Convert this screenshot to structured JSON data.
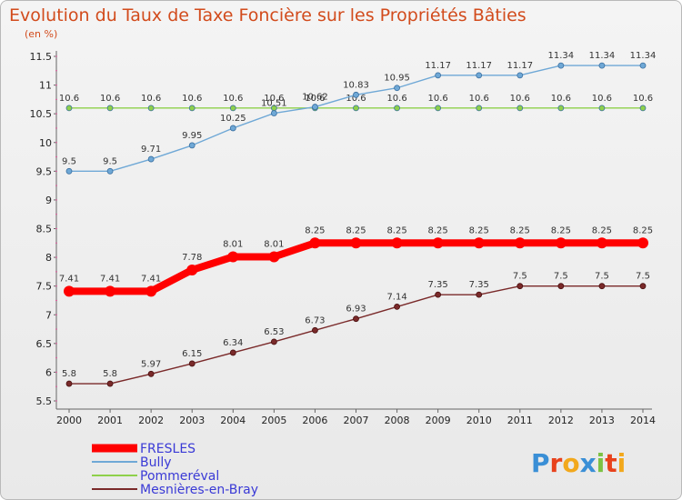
{
  "chart_data": {
    "type": "line",
    "title": "Evolution du Taux de Taxe Foncière sur les Propriétés Bâties",
    "subtitle": "(en %)",
    "x": [
      "2000",
      "2001",
      "2002",
      "2003",
      "2004",
      "2005",
      "2006",
      "2007",
      "2008",
      "2009",
      "2010",
      "2011",
      "2012",
      "2013",
      "2014"
    ],
    "ylim": [
      5.5,
      11.5
    ],
    "yticks": [
      "5.5",
      "6",
      "6.5",
      "7",
      "7.5",
      "8",
      "8.5",
      "9",
      "9.5",
      "10",
      "10.5",
      "11",
      "11.5"
    ],
    "grid": false,
    "legend_position": "bottom-left",
    "series": [
      {
        "name": "FRESLES",
        "color": "#ff0000",
        "values": [
          7.41,
          7.41,
          7.41,
          7.78,
          8.01,
          8.01,
          8.25,
          8.25,
          8.25,
          8.25,
          8.25,
          8.25,
          8.25,
          8.25,
          8.25
        ],
        "labels": [
          "7.41",
          "7.41",
          "7.41",
          "7.78",
          "8.01",
          "8.01",
          "8.25",
          "8.25",
          "8.25",
          "8.25",
          "8.25",
          "8.25",
          "8.25",
          "8.25",
          "8.25"
        ]
      },
      {
        "name": "Bully",
        "color": "#6fa8d6",
        "values": [
          9.5,
          9.5,
          9.71,
          9.95,
          10.25,
          10.51,
          10.62,
          10.83,
          10.95,
          11.17,
          11.17,
          11.17,
          11.34,
          11.34,
          11.34
        ],
        "labels": [
          "9.5",
          "9.5",
          "9.71",
          "9.95",
          "10.25",
          "10.51",
          "10.62",
          "10.83",
          "10.95",
          "11.17",
          "11.17",
          "11.17",
          "11.34",
          "11.34",
          "11.34"
        ]
      },
      {
        "name": "Pommeréval",
        "color": "#8ed04a",
        "values": [
          10.6,
          10.6,
          10.6,
          10.6,
          10.6,
          10.6,
          10.6,
          10.6,
          10.6,
          10.6,
          10.6,
          10.6,
          10.6,
          10.6,
          10.6
        ],
        "labels": [
          "10.6",
          "10.6",
          "10.6",
          "10.6",
          "10.6",
          "10.6",
          "10.6",
          "10.6",
          "10.6",
          "10.6",
          "10.6",
          "10.6",
          "10.6",
          "10.6",
          "10.6"
        ]
      },
      {
        "name": "Mesnières-en-Bray",
        "color": "#7a2a2a",
        "values": [
          5.8,
          5.8,
          5.97,
          6.15,
          6.34,
          6.53,
          6.73,
          6.93,
          7.14,
          7.35,
          7.35,
          7.5,
          7.5,
          7.5,
          7.5
        ],
        "labels": [
          "5.8",
          "5.8",
          "5.97",
          "6.15",
          "6.34",
          "6.53",
          "6.73",
          "6.93",
          "7.14",
          "7.35",
          "7.35",
          "7.5",
          "7.5",
          "7.5",
          "7.5"
        ]
      }
    ]
  },
  "logo": {
    "text": "Proxiti",
    "letters": [
      "P",
      "r",
      "o",
      "x",
      "i",
      "t",
      "i"
    ],
    "colors": [
      "#3a8fd6",
      "#e8421c",
      "#f2a81c",
      "#3a8fd6",
      "#7cc243",
      "#e8421c",
      "#f2a81c"
    ]
  }
}
